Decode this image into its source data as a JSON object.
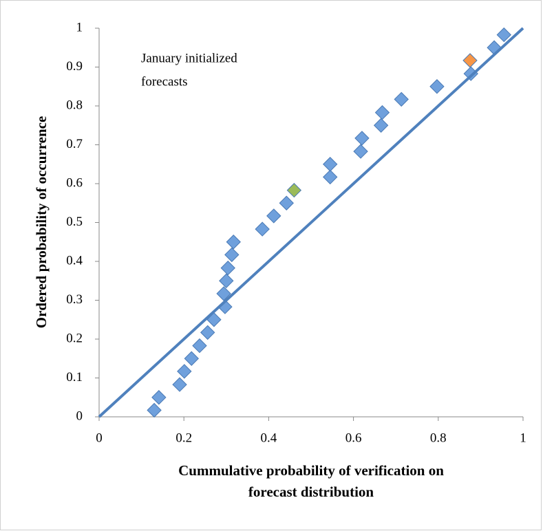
{
  "chart_data": {
    "type": "scatter",
    "annotation": [
      "January initialized",
      "forecasts"
    ],
    "x_label": [
      "Cummulative probability of verification on",
      "forecast distribution"
    ],
    "y_label": "Ordered probability of occurrence",
    "xlim": [
      0,
      1
    ],
    "xticks": [
      0,
      0.2,
      0.4,
      0.6,
      0.8,
      1
    ],
    "ylim": [
      0,
      1
    ],
    "yticks": [
      0,
      0.1,
      0.2,
      0.3,
      0.4,
      0.5,
      0.6,
      0.7,
      0.8,
      0.9,
      1
    ],
    "grid": false,
    "marker": "diamond",
    "reference_line": {
      "x": [
        0,
        1
      ],
      "values": [
        0,
        1
      ],
      "color": "#4f81bd"
    },
    "series": [
      {
        "color": "#6fa0dc",
        "x": [
          0.13,
          0.141,
          0.19,
          0.201,
          0.218,
          0.237,
          0.256,
          0.271,
          0.297,
          0.294,
          0.3,
          0.304,
          0.313,
          0.317,
          0.385,
          0.412,
          0.442,
          0.545,
          0.545,
          0.617,
          0.62,
          0.665,
          0.668,
          0.713,
          0.797,
          0.877,
          0.932,
          0.955
        ],
        "values": [
          0.017,
          0.05,
          0.083,
          0.117,
          0.15,
          0.183,
          0.217,
          0.25,
          0.283,
          0.317,
          0.35,
          0.383,
          0.417,
          0.45,
          0.483,
          0.517,
          0.55,
          0.617,
          0.65,
          0.683,
          0.717,
          0.75,
          0.783,
          0.817,
          0.85,
          0.883,
          0.95,
          0.983
        ]
      },
      {
        "color": "#9bbb59",
        "x": [
          0.46
        ],
        "values": [
          0.583
        ]
      },
      {
        "color": "#f79646",
        "x": [
          0.875
        ],
        "values": [
          0.917
        ]
      }
    ]
  }
}
